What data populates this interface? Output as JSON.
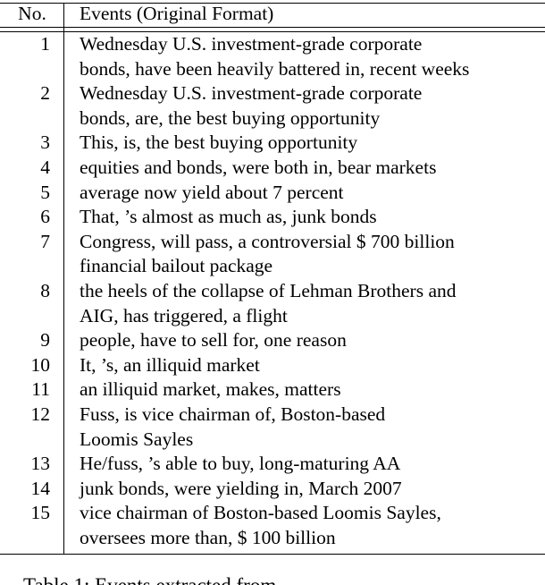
{
  "table": {
    "header": [
      "No.",
      "Events (Original Format)"
    ],
    "rows": [
      [
        "1",
        [
          "Wednesday U.S. investment-grade corporate",
          "bonds, have been heavily battered in, recent weeks"
        ]
      ],
      [
        "2",
        [
          "Wednesday U.S. investment-grade corporate",
          "bonds, are, the best buying opportunity"
        ]
      ],
      [
        "3",
        [
          "This, is, the best buying opportunity"
        ]
      ],
      [
        "4",
        [
          "equities and bonds, were both in, bear markets"
        ]
      ],
      [
        "5",
        [
          "average now yield about 7 percent"
        ]
      ],
      [
        "6",
        [
          "That, ’s almost as much as, junk bonds"
        ]
      ],
      [
        "7",
        [
          "Congress, will pass, a controversial $ 700 billion",
          "financial bailout package"
        ]
      ],
      [
        "8",
        [
          "the heels of the collapse of Lehman Brothers and",
          "AIG, has triggered, a flight"
        ]
      ],
      [
        "9",
        [
          "people, have to sell for, one reason"
        ]
      ],
      [
        "10",
        [
          "It, ’s, an illiquid market"
        ]
      ],
      [
        "11",
        [
          "an illiquid market, makes, matters"
        ]
      ],
      [
        "12",
        [
          "Fuss, is vice chairman of, Boston-based",
          "Loomis Sayles"
        ]
      ],
      [
        "13",
        [
          "He/fuss, ’s able to buy, long-maturing AA"
        ]
      ],
      [
        "14",
        [
          "junk bonds, were yielding in, March 2007"
        ]
      ],
      [
        "15",
        [
          "vice chairman of Boston-based Loomis Sayles,",
          "oversees more than, $ 100 billion"
        ]
      ]
    ],
    "caption": "Table 1: Events extracted from"
  }
}
